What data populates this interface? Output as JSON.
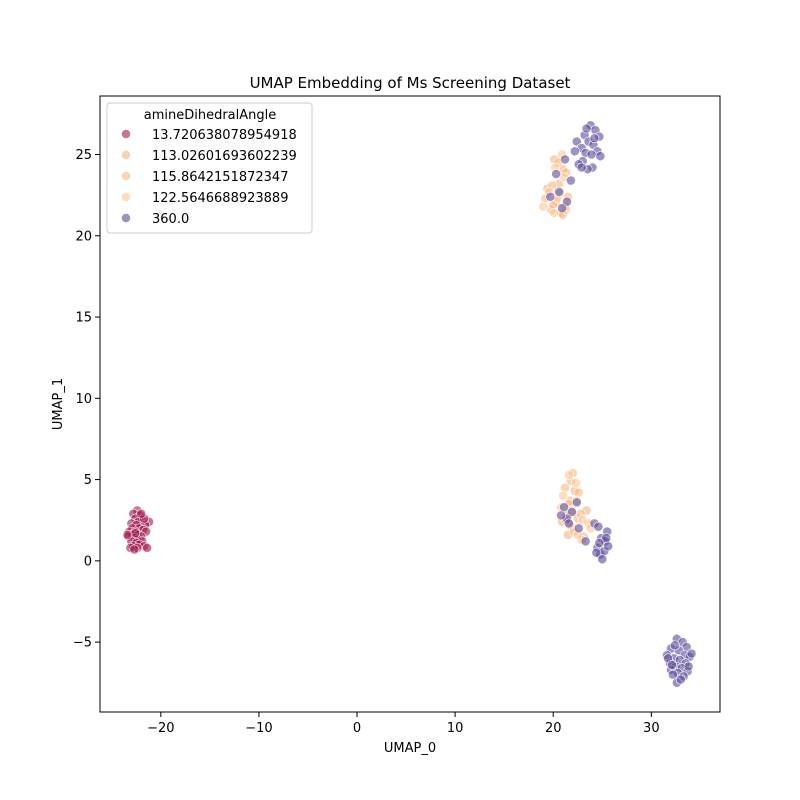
{
  "chart_data": {
    "type": "scatter",
    "title": "UMAP Embedding of Ms Screening Dataset",
    "xlabel": "UMAP_0",
    "ylabel": "UMAP_1",
    "xlim": [
      -26.2,
      37.0
    ],
    "ylim": [
      -9.3,
      28.6
    ],
    "xticks": [
      -20,
      -10,
      0,
      10,
      20,
      30
    ],
    "yticks": [
      -5,
      0,
      5,
      10,
      15,
      20,
      25
    ],
    "xtick_labels": [
      "−20",
      "−10",
      "0",
      "10",
      "20",
      "30"
    ],
    "ytick_labels": [
      "−5",
      "0",
      "5",
      "10",
      "15",
      "20",
      "25"
    ],
    "grid": false,
    "legend": {
      "title": "amineDihedralAngle",
      "placement": "upper-left"
    },
    "series": [
      {
        "name": "13.720638078954918",
        "color": "#a3174f",
        "points": [
          [
            -22.4,
            3.1
          ],
          [
            -22.8,
            2.9
          ],
          [
            -22.1,
            2.8
          ],
          [
            -22.6,
            2.6
          ],
          [
            -21.9,
            2.5
          ],
          [
            -22.3,
            2.4
          ],
          [
            -21.2,
            2.4
          ],
          [
            -23.0,
            2.3
          ],
          [
            -22.5,
            2.2
          ],
          [
            -21.6,
            2.2
          ],
          [
            -22.9,
            2.0
          ],
          [
            -22.2,
            2.0
          ],
          [
            -21.8,
            1.9
          ],
          [
            -23.2,
            1.8
          ],
          [
            -22.6,
            1.8
          ],
          [
            -21.5,
            1.8
          ],
          [
            -22.9,
            1.6
          ],
          [
            -22.3,
            1.6
          ],
          [
            -23.3,
            1.5
          ],
          [
            -22.0,
            1.5
          ],
          [
            -22.7,
            1.4
          ],
          [
            -22.4,
            1.3
          ],
          [
            -23.0,
            1.2
          ],
          [
            -21.9,
            1.2
          ],
          [
            -22.5,
            1.1
          ],
          [
            -22.2,
            1.0
          ],
          [
            -22.8,
            0.9
          ],
          [
            -21.7,
            0.9
          ],
          [
            -22.4,
            0.8
          ],
          [
            -23.1,
            0.8
          ],
          [
            -21.4,
            0.8
          ],
          [
            -22.6,
            1.7
          ],
          [
            -21.7,
            2.6
          ],
          [
            -23.4,
            1.6
          ],
          [
            -22.0,
            2.9
          ],
          [
            -22.7,
            0.7
          ]
        ]
      },
      {
        "name": "113.02601693602239",
        "color": "#f0b487",
        "points": [
          [
            20.1,
            24.7
          ],
          [
            21.0,
            24.1
          ],
          [
            20.6,
            23.2
          ],
          [
            19.4,
            22.9
          ],
          [
            20.3,
            22.1
          ],
          [
            21.2,
            21.8
          ],
          [
            19.8,
            21.6
          ],
          [
            20.8,
            21.4
          ],
          [
            21.4,
            2.8
          ],
          [
            22.5,
            2.6
          ],
          [
            21.9,
            2.1
          ],
          [
            23.1,
            1.5
          ],
          [
            21.5,
            1.6
          ],
          [
            22.2,
            4.3
          ],
          [
            23.4,
            3.1
          ],
          [
            20.9,
            2.4
          ],
          [
            21.7,
            3.7
          ]
        ]
      },
      {
        "name": "115.8642151872347",
        "color": "#f5b982",
        "points": [
          [
            20.5,
            24.5
          ],
          [
            21.3,
            23.9
          ],
          [
            19.9,
            23.1
          ],
          [
            20.7,
            22.6
          ],
          [
            19.2,
            22.3
          ],
          [
            21.5,
            22.4
          ],
          [
            20.0,
            21.9
          ],
          [
            21.0,
            21.3
          ],
          [
            22.0,
            5.4
          ],
          [
            21.2,
            4.5
          ],
          [
            22.6,
            4.2
          ],
          [
            21.6,
            3.5
          ],
          [
            22.8,
            2.9
          ],
          [
            21.3,
            2.5
          ],
          [
            23.6,
            2.3
          ],
          [
            22.1,
            1.8
          ],
          [
            22.9,
            1.3
          ],
          [
            21.8,
            4.9
          ]
        ]
      },
      {
        "name": "122.5646688923889",
        "color": "#fcc791",
        "points": [
          [
            20.9,
            25.0
          ],
          [
            20.2,
            24.2
          ],
          [
            21.1,
            23.6
          ],
          [
            19.6,
            22.7
          ],
          [
            20.4,
            22.3
          ],
          [
            19.0,
            21.8
          ],
          [
            21.3,
            21.6
          ],
          [
            20.1,
            21.4
          ],
          [
            21.6,
            5.3
          ],
          [
            22.3,
            4.8
          ],
          [
            21.0,
            4.0
          ],
          [
            22.4,
            3.7
          ],
          [
            21.9,
            3.1
          ],
          [
            23.0,
            2.5
          ],
          [
            21.7,
            2.2
          ],
          [
            22.5,
            1.6
          ],
          [
            23.8,
            2.0
          ],
          [
            20.8,
            3.3
          ]
        ]
      },
      {
        "name": "360.0",
        "color": "#5d4a9a",
        "points": [
          [
            23.8,
            26.8
          ],
          [
            24.3,
            26.5
          ],
          [
            23.2,
            26.2
          ],
          [
            24.7,
            26.1
          ],
          [
            23.6,
            25.8
          ],
          [
            22.4,
            25.8
          ],
          [
            24.1,
            25.6
          ],
          [
            22.9,
            25.4
          ],
          [
            24.5,
            25.2
          ],
          [
            23.3,
            25.1
          ],
          [
            22.2,
            25.2
          ],
          [
            24.8,
            24.9
          ],
          [
            23.0,
            24.6
          ],
          [
            21.2,
            24.7
          ],
          [
            22.6,
            24.4
          ],
          [
            24.0,
            24.2
          ],
          [
            23.5,
            24.1
          ],
          [
            22.9,
            24.2
          ],
          [
            20.3,
            23.8
          ],
          [
            21.8,
            23.4
          ],
          [
            20.6,
            22.7
          ],
          [
            19.7,
            22.4
          ],
          [
            21.4,
            22.1
          ],
          [
            20.9,
            21.7
          ],
          [
            24.2,
            26.0
          ],
          [
            23.9,
            25.0
          ],
          [
            23.4,
            26.6
          ],
          [
            21.1,
            3.3
          ],
          [
            21.9,
            3.0
          ],
          [
            22.4,
            3.6
          ],
          [
            21.4,
            2.6
          ],
          [
            20.8,
            2.8
          ],
          [
            22.6,
            2.0
          ],
          [
            23.3,
            1.2
          ],
          [
            24.2,
            2.3
          ],
          [
            24.6,
            2.1
          ],
          [
            24.9,
            1.4
          ],
          [
            25.3,
            1.2
          ],
          [
            24.5,
            0.8
          ],
          [
            25.5,
            1.8
          ],
          [
            24.8,
            0.4
          ],
          [
            25.2,
            0.6
          ],
          [
            25.6,
            0.9
          ],
          [
            24.4,
            0.5
          ],
          [
            25.0,
            0.1
          ],
          [
            21.6,
            2.3
          ],
          [
            25.4,
            1.4
          ],
          [
            24.7,
            1.1
          ],
          [
            32.6,
            -4.8
          ],
          [
            33.2,
            -5.0
          ],
          [
            32.0,
            -5.4
          ],
          [
            33.6,
            -5.3
          ],
          [
            32.8,
            -5.5
          ],
          [
            31.6,
            -5.8
          ],
          [
            33.4,
            -5.8
          ],
          [
            32.3,
            -6.0
          ],
          [
            33.9,
            -5.9
          ],
          [
            32.9,
            -6.1
          ],
          [
            31.9,
            -6.3
          ],
          [
            33.5,
            -6.3
          ],
          [
            32.5,
            -6.5
          ],
          [
            33.1,
            -6.6
          ],
          [
            32.0,
            -6.7
          ],
          [
            33.7,
            -6.8
          ],
          [
            32.7,
            -6.9
          ],
          [
            33.3,
            -7.1
          ],
          [
            32.2,
            -7.0
          ],
          [
            32.6,
            -7.5
          ],
          [
            31.7,
            -6.0
          ],
          [
            34.1,
            -5.7
          ],
          [
            33.0,
            -7.3
          ],
          [
            32.4,
            -5.2
          ],
          [
            33.8,
            -6.5
          ],
          [
            32.1,
            -6.4
          ]
        ]
      }
    ]
  }
}
